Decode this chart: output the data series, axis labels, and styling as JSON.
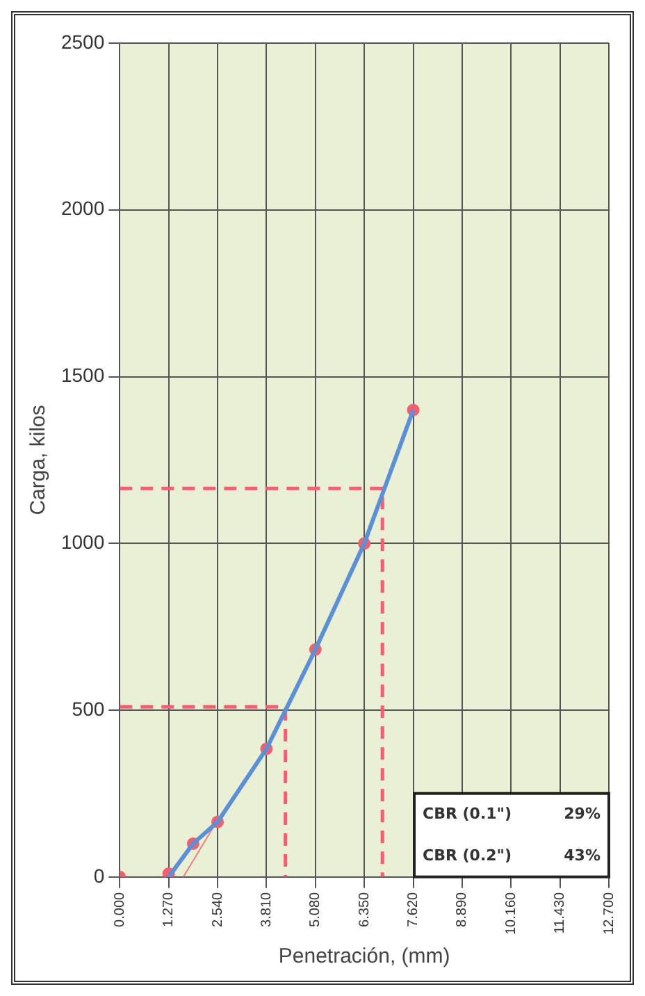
{
  "chart_data": {
    "type": "line",
    "xlabel": "Penetración, (mm)",
    "ylabel": "Carga, kilos",
    "xlim": [
      0,
      12.7
    ],
    "xticks": [
      {
        "value": 0,
        "label": "0.000"
      },
      {
        "value": 1.27,
        "label": "1.270"
      },
      {
        "value": 2.54,
        "label": "2.540"
      },
      {
        "value": 3.81,
        "label": "3.810"
      },
      {
        "value": 5.08,
        "label": "5.080"
      },
      {
        "value": 6.35,
        "label": "6.350"
      },
      {
        "value": 7.62,
        "label": "7.620"
      },
      {
        "value": 8.89,
        "label": "8.890"
      },
      {
        "value": 10.16,
        "label": "10.160"
      },
      {
        "value": 11.43,
        "label": "11.430"
      },
      {
        "value": 12.7,
        "label": "12.700"
      }
    ],
    "ylim": [
      0,
      2500
    ],
    "yticks": [
      0,
      500,
      1000,
      1500,
      2000,
      2500
    ],
    "grid": true,
    "legend": false,
    "series": [
      {
        "type": "line",
        "color": "#5b8fd6",
        "marker": "none",
        "line_style": "solid",
        "x": [
          1.27,
          1.905,
          2.54,
          3.81,
          5.08,
          6.35,
          7.62
        ],
        "values": [
          0,
          100,
          165,
          384,
          682,
          1000,
          1400
        ]
      },
      {
        "type": "line",
        "color": "#f08080",
        "marker": "none",
        "line_style": "solid",
        "x": [
          1.65,
          2.54
        ],
        "values": [
          0,
          170
        ]
      },
      {
        "type": "line",
        "color": "#f06070",
        "marker": "none",
        "line_style": "dashed",
        "x": [
          0,
          4.3,
          4.3
        ],
        "values": [
          510,
          510,
          0
        ]
      },
      {
        "type": "line",
        "color": "#f06070",
        "marker": "none",
        "line_style": "dashed",
        "x": [
          0,
          6.82,
          6.82
        ],
        "values": [
          1165,
          1165,
          0
        ]
      },
      {
        "type": "scatter",
        "color": "#f06070",
        "marker": "circle",
        "x": [
          0,
          1.27,
          1.905,
          2.54,
          3.81,
          5.08,
          6.35,
          7.62
        ],
        "values": [
          0,
          10,
          100,
          165,
          384,
          682,
          1000,
          1400
        ]
      }
    ],
    "annotations": [
      "CBR (0.1\")",
      "29%",
      "CBR (0.2\")",
      "43%"
    ]
  }
}
